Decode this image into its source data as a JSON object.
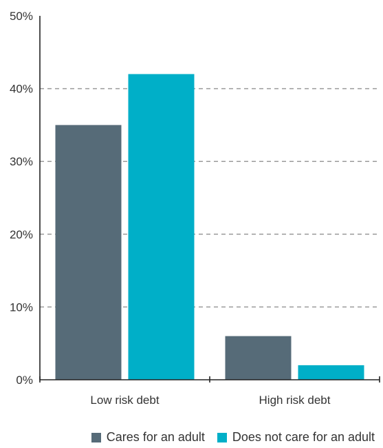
{
  "chart_data": {
    "type": "bar",
    "categories": [
      "Low risk debt",
      "High risk debt"
    ],
    "series": [
      {
        "name": "Cares for an adult",
        "values": [
          35,
          6
        ],
        "color": "#566b78"
      },
      {
        "name": "Does not care for an adult",
        "values": [
          42,
          2
        ],
        "color": "#00afc8"
      }
    ],
    "yticks": [
      "0%",
      "10%",
      "20%",
      "30%",
      "40%",
      "50%"
    ],
    "ylim": [
      0,
      50
    ],
    "grid": "dashed-horizontal",
    "legend_position": "bottom"
  }
}
